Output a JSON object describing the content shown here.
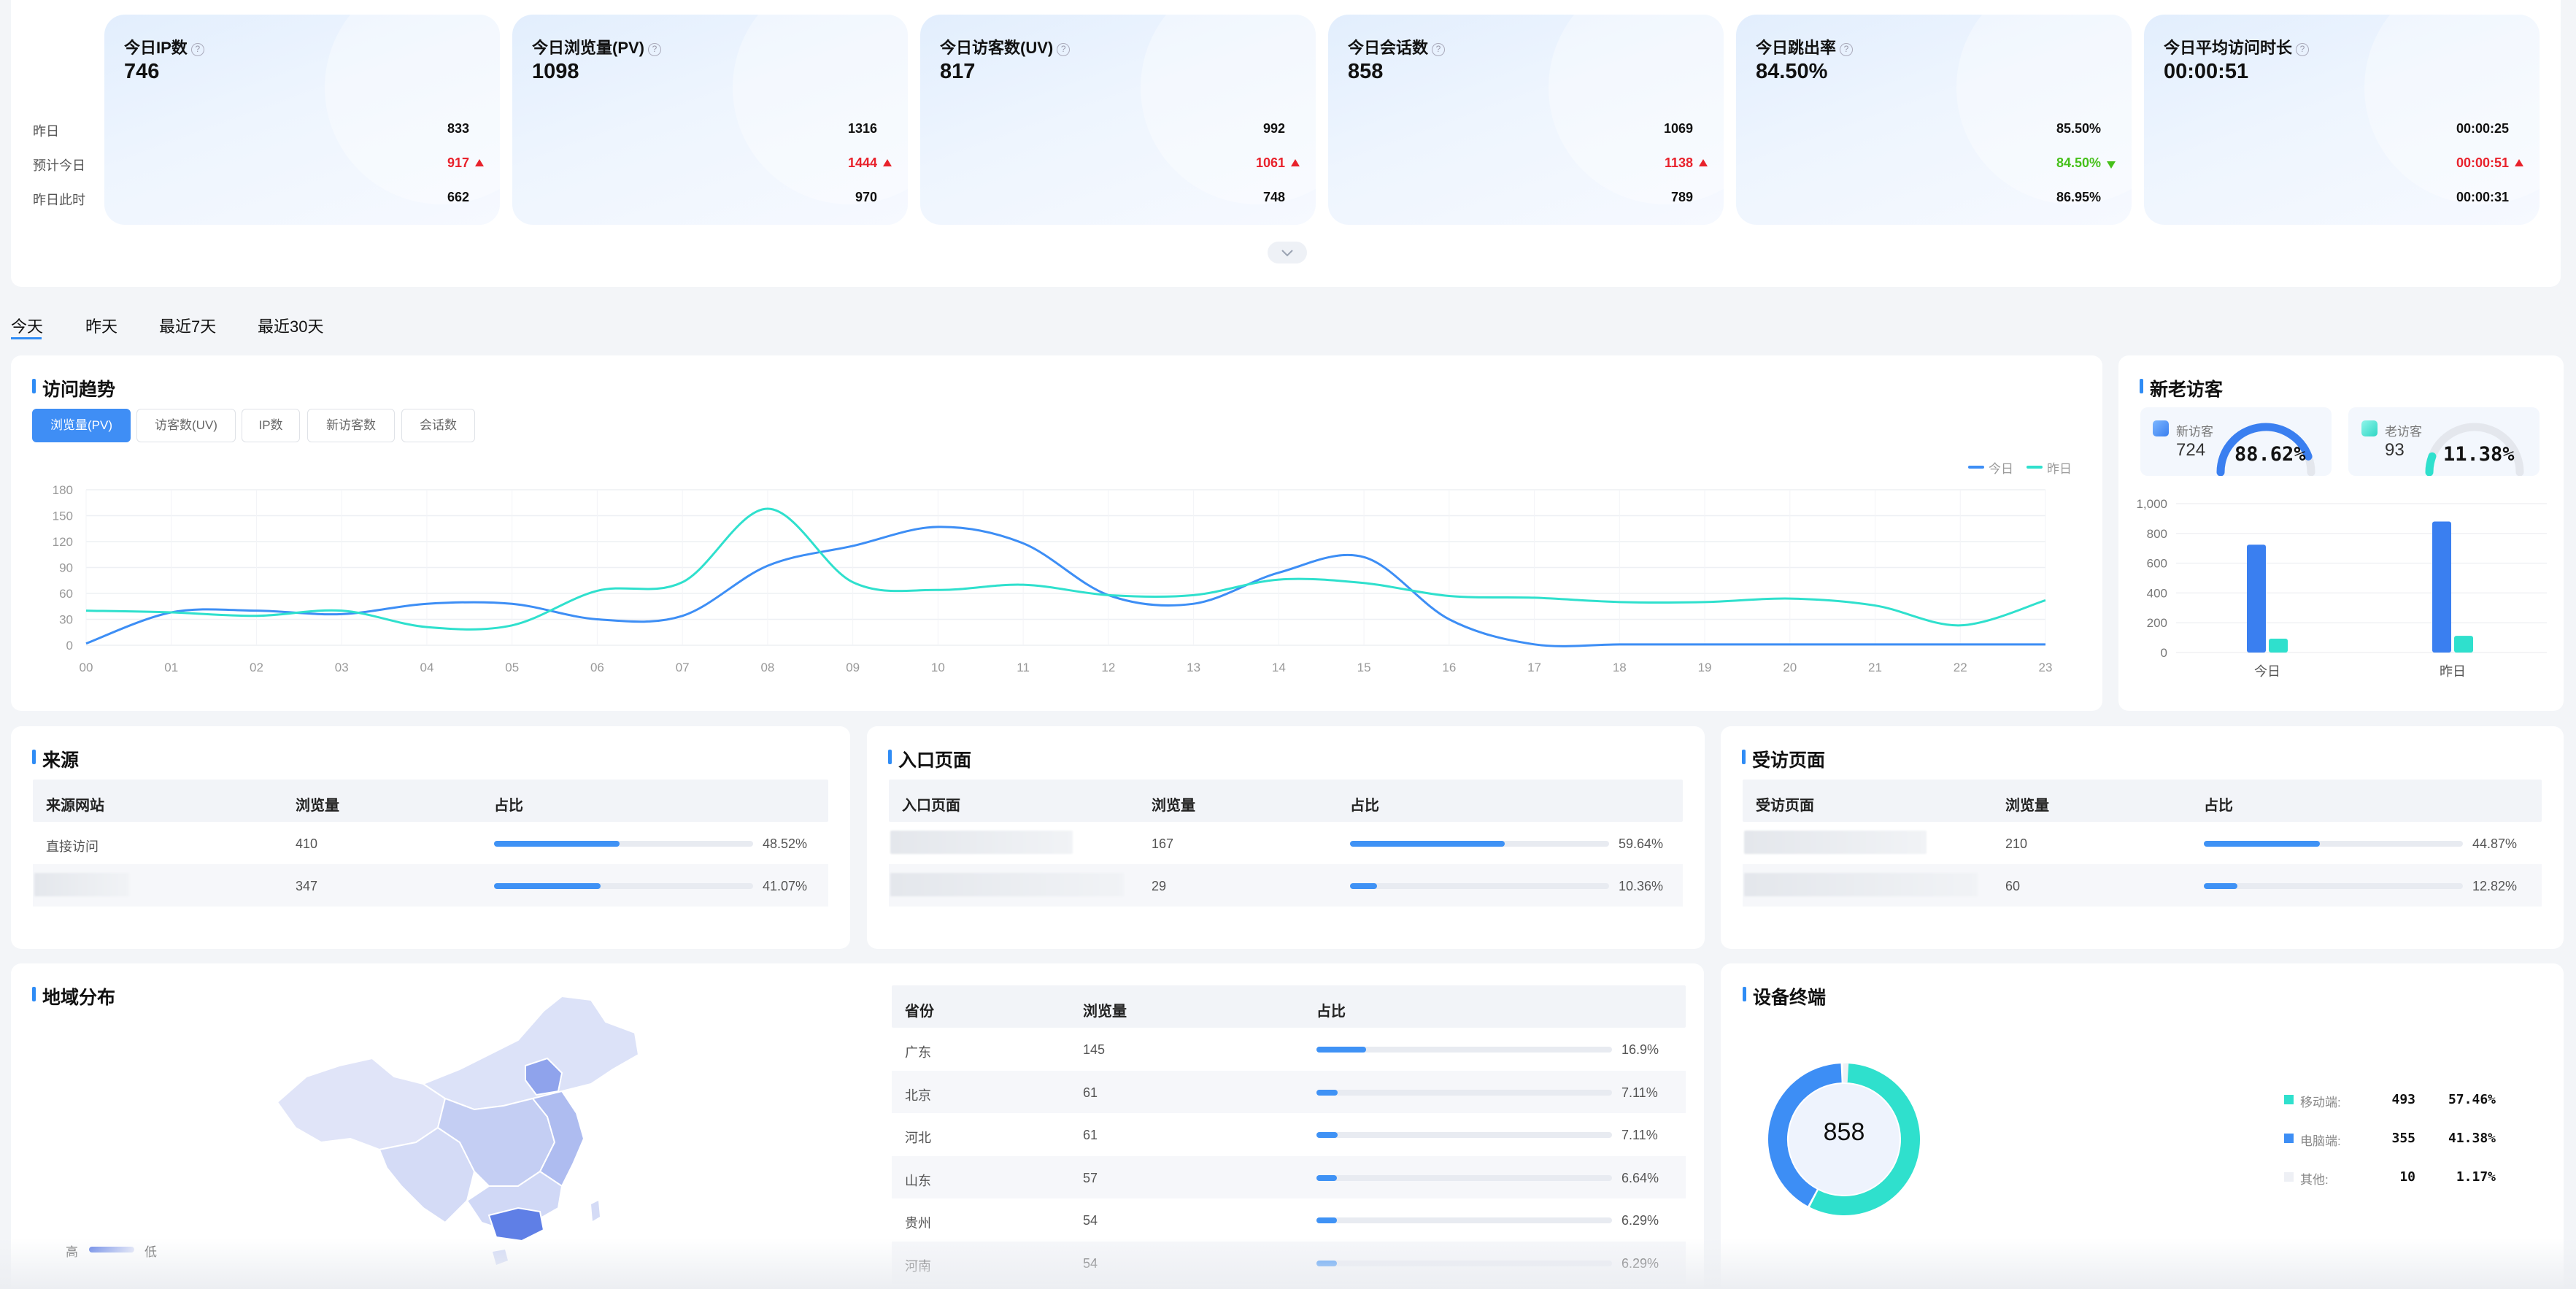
{
  "cards": [
    {
      "title": "今日IP数",
      "value": "746",
      "yesterday": "833",
      "predict": "917",
      "predict_dir": "up",
      "same_time": "662"
    },
    {
      "title": "今日浏览量(PV)",
      "value": "1098",
      "yesterday": "1316",
      "predict": "1444",
      "predict_dir": "up",
      "same_time": "970"
    },
    {
      "title": "今日访客数(UV)",
      "value": "817",
      "yesterday": "992",
      "predict": "1061",
      "predict_dir": "up",
      "same_time": "748"
    },
    {
      "title": "今日会话数",
      "value": "858",
      "yesterday": "1069",
      "predict": "1138",
      "predict_dir": "up",
      "same_time": "789"
    },
    {
      "title": "今日跳出率",
      "value": "84.50%",
      "yesterday": "85.50%",
      "predict": "84.50%",
      "predict_dir": "down",
      "same_time": "86.95%"
    },
    {
      "title": "今日平均访问时长",
      "value": "00:00:51",
      "yesterday": "00:00:25",
      "predict": "00:00:51",
      "predict_dir": "up",
      "same_time": "00:00:31"
    }
  ],
  "row_labels": {
    "yesterday": "昨日",
    "predict": "预计今日",
    "same_time": "昨日此时"
  },
  "date_tabs": [
    "今天",
    "昨天",
    "最近7天",
    "最近30天"
  ],
  "trend": {
    "title": "访问趋势",
    "metric_buttons": [
      "浏览量(PV)",
      "访客数(UV)",
      "IP数",
      "新访客数",
      "会话数"
    ],
    "active_metric": "浏览量(PV)",
    "legend": [
      "今日",
      "昨日"
    ]
  },
  "chart_data": [
    {
      "type": "line",
      "x": [
        "00",
        "01",
        "02",
        "03",
        "04",
        "05",
        "06",
        "07",
        "08",
        "09",
        "10",
        "11",
        "12",
        "13",
        "14",
        "15",
        "16",
        "17",
        "18",
        "19",
        "20",
        "21",
        "22",
        "23"
      ],
      "yticks": [
        "0",
        "30",
        "60",
        "90",
        "120",
        "150",
        "180"
      ],
      "ylim": [
        0,
        180
      ],
      "series": [
        {
          "name": "今日",
          "color": "#3d8ef5",
          "values": [
            2,
            38,
            40,
            36,
            48,
            48,
            30,
            34,
            92,
            115,
            137,
            118,
            58,
            48,
            84,
            102,
            30,
            1,
            1,
            1,
            1,
            1,
            1,
            1
          ]
        },
        {
          "name": "昨日",
          "color": "#2fe0cd",
          "values": [
            40,
            38,
            34,
            40,
            21,
            23,
            63,
            73,
            158,
            73,
            64,
            70,
            58,
            58,
            76,
            72,
            57,
            55,
            50,
            50,
            54,
            46,
            23,
            52
          ]
        }
      ]
    },
    {
      "type": "bar",
      "categories": [
        "今日",
        "昨日"
      ],
      "yticks": [
        "0",
        "200",
        "400",
        "600",
        "800",
        "1,000"
      ],
      "ylim": [
        0,
        1000
      ],
      "series": [
        {
          "name": "新访客",
          "color": "#3a7ff0",
          "values": [
            724,
            880
          ]
        },
        {
          "name": "老访客",
          "color": "#2fe0cd",
          "values": [
            93,
            112
          ]
        }
      ]
    },
    {
      "type": "pie",
      "center": "858",
      "categories": [
        "移动端",
        "电脑端",
        "其他"
      ],
      "values": [
        493,
        355,
        10
      ],
      "colors": [
        "#2fe0cd",
        "#3d8ef5",
        "#eef0f5"
      ]
    }
  ],
  "visitors": {
    "title": "新老访客",
    "new_label": "新访客",
    "new_count": "724",
    "new_pct": "88.62%",
    "old_label": "老访客",
    "old_count": "93",
    "old_pct": "11.38%"
  },
  "source": {
    "title": "来源",
    "headers": [
      "来源网站",
      "浏览量",
      "占比"
    ],
    "rows": [
      {
        "name": "直接访问",
        "pv": "410",
        "pct": "48.52%",
        "ratio": 0.4852
      },
      {
        "name": "",
        "pv": "347",
        "pct": "41.07%",
        "ratio": 0.4107
      }
    ]
  },
  "entry": {
    "title": "入口页面",
    "headers": [
      "入口页面",
      "浏览量",
      "占比"
    ],
    "rows": [
      {
        "pv": "167",
        "pct": "59.64%",
        "ratio": 0.5964
      },
      {
        "pv": "29",
        "pct": "10.36%",
        "ratio": 0.1036
      }
    ]
  },
  "visited": {
    "title": "受访页面",
    "headers": [
      "受访页面",
      "浏览量",
      "占比"
    ],
    "rows": [
      {
        "pv": "210",
        "pct": "44.87%",
        "ratio": 0.4487
      },
      {
        "pv": "60",
        "pct": "12.82%",
        "ratio": 0.1282
      }
    ]
  },
  "region": {
    "title": "地域分布",
    "legend_high": "高",
    "legend_low": "低",
    "headers": [
      "省份",
      "浏览量",
      "占比"
    ],
    "rows": [
      {
        "name": "广东",
        "pv": "145",
        "pct": "16.9%",
        "ratio": 0.169
      },
      {
        "name": "北京",
        "pv": "61",
        "pct": "7.11%",
        "ratio": 0.0711
      },
      {
        "name": "河北",
        "pv": "61",
        "pct": "7.11%",
        "ratio": 0.0711
      },
      {
        "name": "山东",
        "pv": "57",
        "pct": "6.64%",
        "ratio": 0.0664
      },
      {
        "name": "贵州",
        "pv": "54",
        "pct": "6.29%",
        "ratio": 0.0629
      },
      {
        "name": "河南",
        "pv": "54",
        "pct": "6.29%",
        "ratio": 0.0629
      }
    ]
  },
  "device": {
    "title": "设备终端",
    "rows": [
      {
        "label": "移动端:",
        "count": "493",
        "pct": "57.46%",
        "color": "#2fe0cd"
      },
      {
        "label": "电脑端:",
        "count": "355",
        "pct": "41.38%",
        "color": "#3d8ef5"
      },
      {
        "label": "其他:",
        "count": "10",
        "pct": "1.17%",
        "color": "#eef0f5"
      }
    ]
  }
}
